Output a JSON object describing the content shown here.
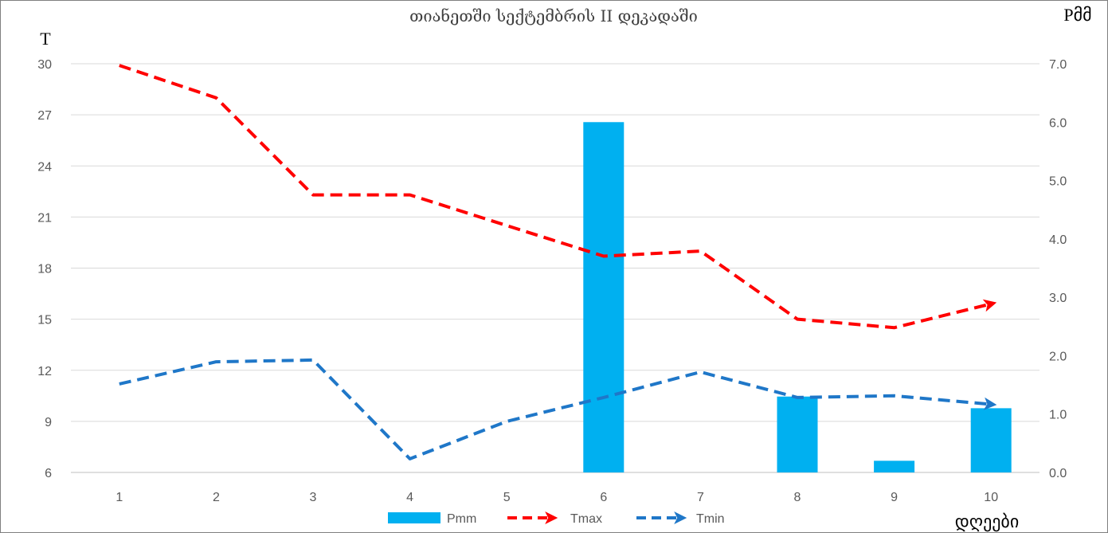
{
  "chart_data": {
    "type": "bar",
    "title": "თიანეთში სექტემბრის II დეკადაში",
    "xlabel": "დღეები",
    "ylabel_left": "T",
    "ylabel_right": "Pმმ",
    "categories": [
      "1",
      "2",
      "3",
      "4",
      "5",
      "6",
      "7",
      "8",
      "9",
      "10"
    ],
    "left_axis": {
      "ylim": [
        6,
        30
      ],
      "ticks": [
        "6",
        "9",
        "12",
        "15",
        "18",
        "21",
        "24",
        "27",
        "30"
      ]
    },
    "right_axis": {
      "ylim": [
        0,
        7
      ],
      "ticks": [
        "0.0",
        "1.0",
        "2.0",
        "3.0",
        "4.0",
        "5.0",
        "6.0",
        "7.0"
      ]
    },
    "grid": true,
    "legend_position": "bottom",
    "series": [
      {
        "name": "Pmm",
        "type": "bar",
        "axis": "right",
        "color": "#00b0f0",
        "values": [
          0,
          0,
          0,
          0,
          0,
          6.0,
          0,
          1.3,
          0.2,
          1.1
        ]
      },
      {
        "name": "Tmax",
        "type": "line",
        "axis": "left",
        "color": "#ff0000",
        "dashed": true,
        "values": [
          29.9,
          28.0,
          22.3,
          22.3,
          20.5,
          18.7,
          19.0,
          15.0,
          14.5,
          15.9
        ]
      },
      {
        "name": "Tmin",
        "type": "line",
        "axis": "left",
        "color": "#1f77c8",
        "dashed": true,
        "values": [
          11.2,
          12.5,
          12.6,
          6.8,
          9.0,
          10.4,
          11.9,
          10.4,
          10.5,
          10.0
        ]
      }
    ]
  }
}
